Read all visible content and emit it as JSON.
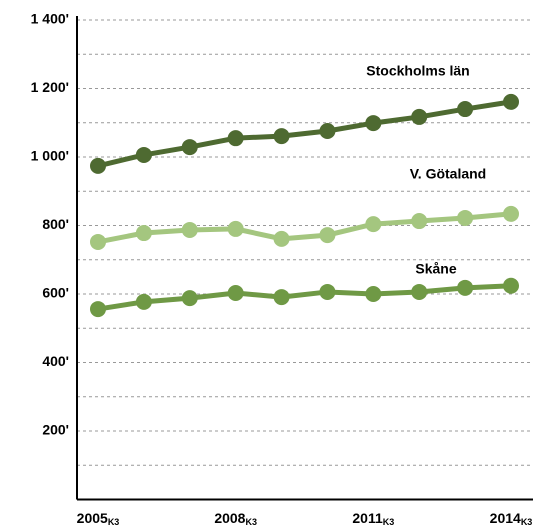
{
  "chart_data": {
    "type": "line",
    "categories": [
      "2005",
      null,
      null,
      "2008",
      null,
      null,
      "2011",
      null,
      null,
      "2014"
    ],
    "category_suffix": "K3",
    "series": [
      {
        "name": "Stockholms län",
        "color": "#4e6a31",
        "values": [
          974,
          1006,
          1029,
          1055,
          1061,
          1076,
          1099,
          1117,
          1140,
          1161
        ]
      },
      {
        "name": "V. Götaland",
        "color": "#a4c67f",
        "values": [
          752,
          778,
          787,
          790,
          761,
          772,
          804,
          813,
          822,
          834
        ]
      },
      {
        "name": "Skåne",
        "color": "#6f9945",
        "values": [
          556,
          577,
          588,
          603,
          591,
          606,
          600,
          606,
          618,
          624
        ]
      }
    ],
    "ylim": [
      0,
      1400
    ],
    "yticks": [
      {
        "value": 200,
        "label": "200'"
      },
      {
        "value": 400,
        "label": "400'"
      },
      {
        "value": 600,
        "label": "600'"
      },
      {
        "value": 800,
        "label": "800'"
      },
      {
        "value": 1000,
        "label": "1 000'"
      },
      {
        "value": 1200,
        "label": "1 200'"
      },
      {
        "value": 1400,
        "label": "1 400'"
      }
    ],
    "yminor": [
      100,
      300,
      500,
      700,
      900,
      1100,
      1300
    ],
    "grid": true
  }
}
